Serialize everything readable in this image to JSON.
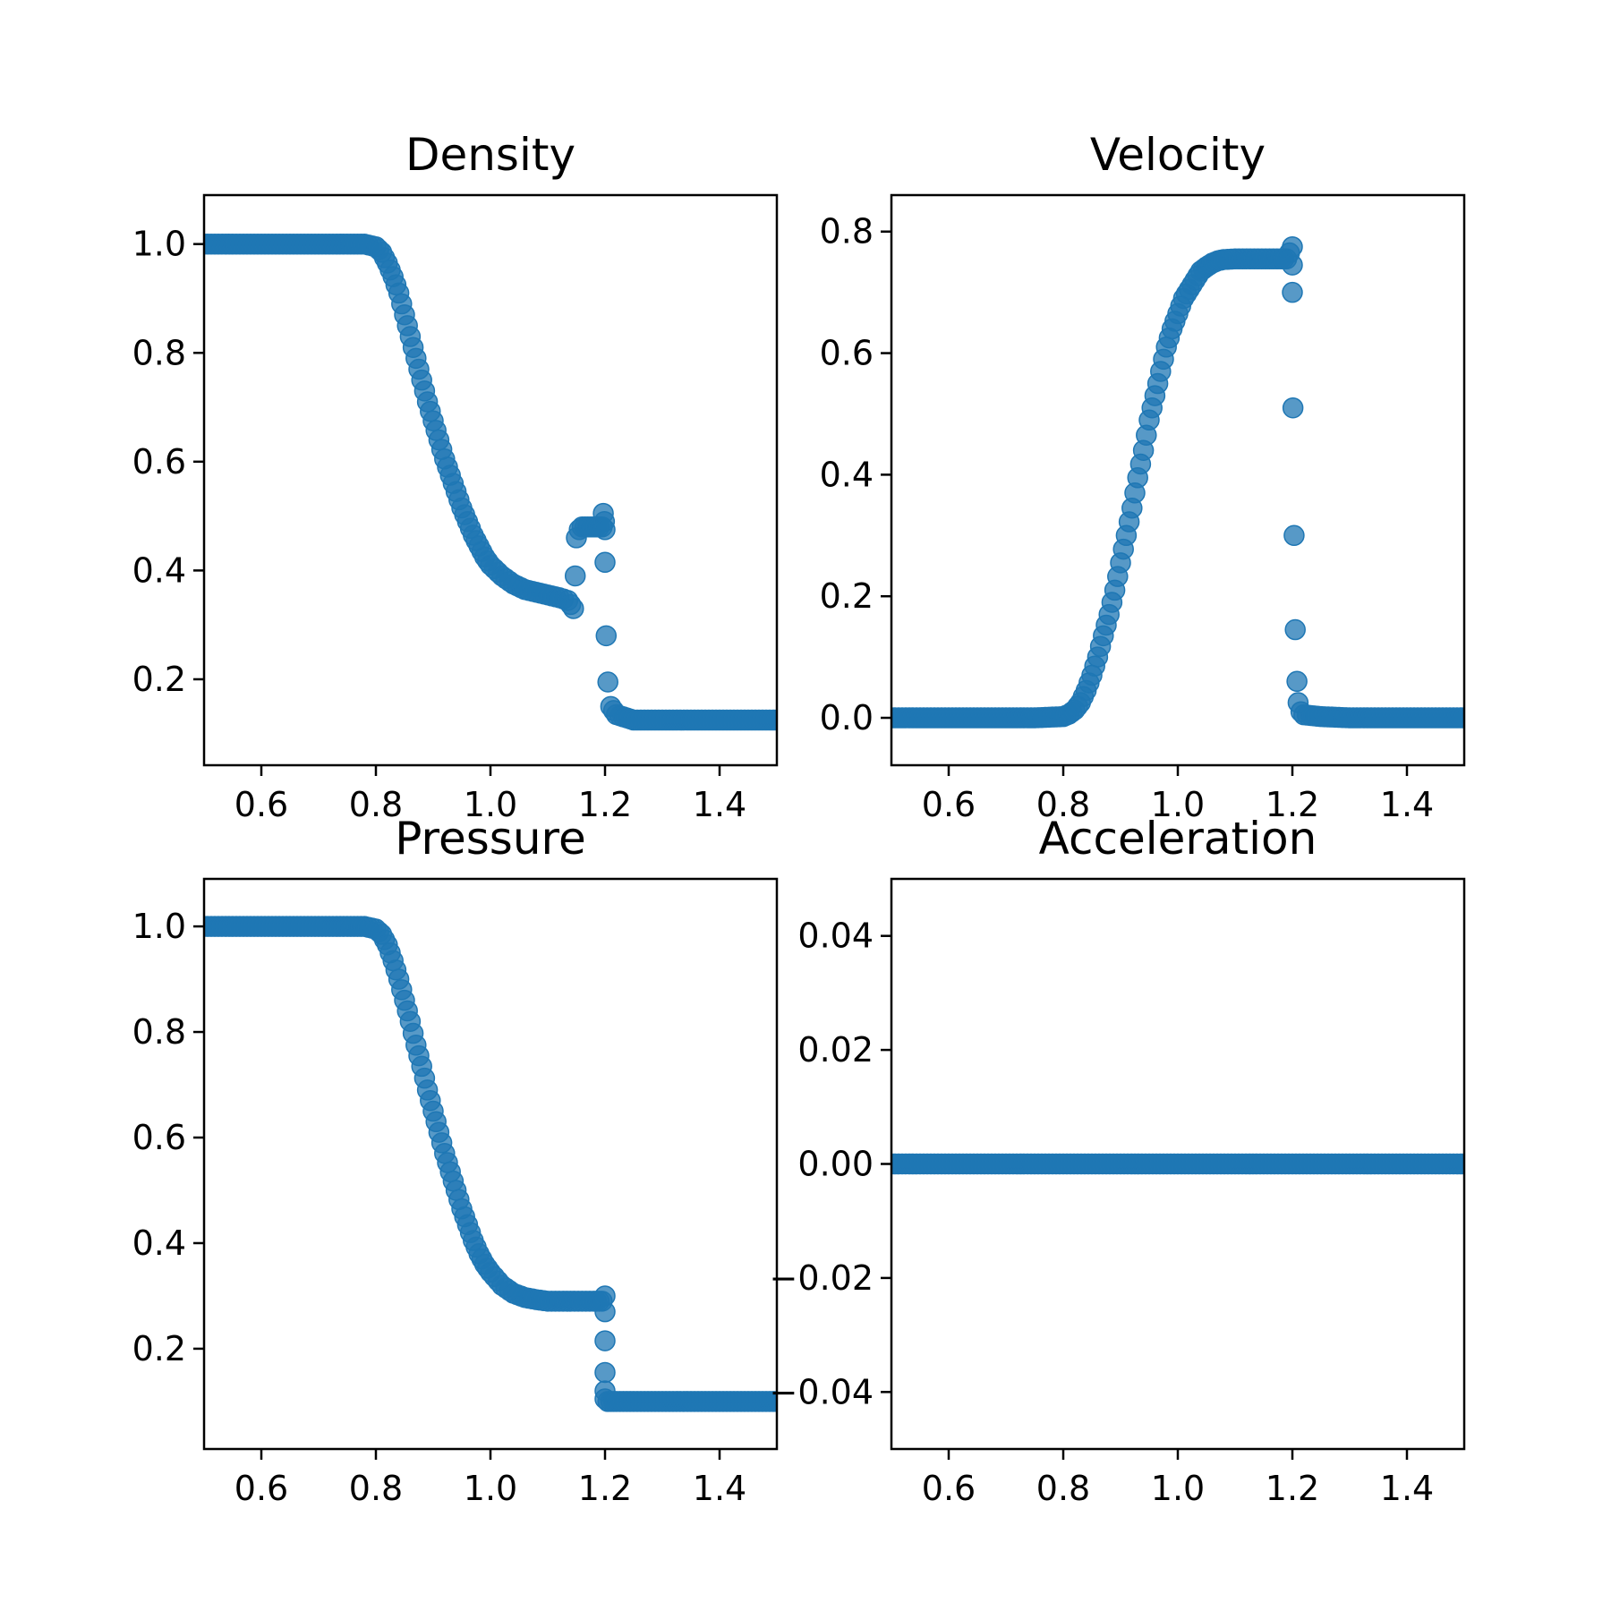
{
  "figure": {
    "background": "#ffffff"
  },
  "chart_data": [
    {
      "type": "scatter",
      "title": "Density",
      "xlabel": "",
      "ylabel": "",
      "xlim": [
        0.5,
        1.5
      ],
      "ylim": [
        0.042,
        1.09
      ],
      "xticks": [
        "0.6",
        "0.8",
        "1.0",
        "1.2",
        "1.4"
      ],
      "yticks": [
        "0.2",
        "0.4",
        "0.6",
        "0.8",
        "1.0"
      ],
      "grid": false,
      "marker_color": "#1f77b4",
      "series": [
        {
          "x": [
            0.5,
            0.55,
            0.6,
            0.65,
            0.7,
            0.75,
            0.78,
            0.8,
            0.81,
            0.82,
            0.83,
            0.84,
            0.85,
            0.86,
            0.87,
            0.88,
            0.89,
            0.9,
            0.91,
            0.92,
            0.93,
            0.94,
            0.95,
            0.96,
            0.97,
            0.98,
            0.99,
            1.0,
            1.02,
            1.04,
            1.06,
            1.08,
            1.1,
            1.12,
            1.135,
            1.145,
            1.148,
            1.15,
            1.155,
            1.16,
            1.17,
            1.18,
            1.19,
            1.195,
            1.197,
            1.199,
            1.2,
            1.2,
            1.202,
            1.205,
            1.21,
            1.22,
            1.25,
            1.3,
            1.35,
            1.4,
            1.45,
            1.5
          ],
          "y": [
            1.0,
            1.0,
            1.0,
            1.0,
            1.0,
            1.0,
            1.0,
            0.995,
            0.985,
            0.965,
            0.94,
            0.91,
            0.87,
            0.83,
            0.79,
            0.75,
            0.71,
            0.675,
            0.64,
            0.605,
            0.575,
            0.545,
            0.515,
            0.49,
            0.465,
            0.445,
            0.425,
            0.41,
            0.39,
            0.375,
            0.365,
            0.36,
            0.355,
            0.35,
            0.345,
            0.33,
            0.39,
            0.46,
            0.475,
            0.48,
            0.48,
            0.48,
            0.48,
            0.48,
            0.505,
            0.49,
            0.475,
            0.415,
            0.28,
            0.195,
            0.15,
            0.135,
            0.125,
            0.125,
            0.125,
            0.125,
            0.125,
            0.125
          ]
        }
      ]
    },
    {
      "type": "scatter",
      "title": "Velocity",
      "xlabel": "",
      "ylabel": "",
      "xlim": [
        0.5,
        1.5
      ],
      "ylim": [
        -0.078,
        0.86
      ],
      "xticks": [
        "0.6",
        "0.8",
        "1.0",
        "1.2",
        "1.4"
      ],
      "yticks": [
        "0.0",
        "0.2",
        "0.4",
        "0.6",
        "0.8"
      ],
      "grid": false,
      "marker_color": "#1f77b4",
      "series": [
        {
          "x": [
            0.5,
            0.55,
            0.6,
            0.65,
            0.7,
            0.75,
            0.8,
            0.81,
            0.82,
            0.83,
            0.84,
            0.85,
            0.86,
            0.87,
            0.88,
            0.89,
            0.9,
            0.91,
            0.92,
            0.93,
            0.94,
            0.95,
            0.96,
            0.97,
            0.98,
            0.99,
            1.0,
            1.01,
            1.02,
            1.03,
            1.04,
            1.05,
            1.06,
            1.07,
            1.08,
            1.1,
            1.12,
            1.14,
            1.16,
            1.18,
            1.19,
            1.2,
            1.2,
            1.2,
            1.201,
            1.203,
            1.205,
            1.208,
            1.21,
            1.215,
            1.22,
            1.25,
            1.3,
            1.35,
            1.4,
            1.45,
            1.5
          ],
          "y": [
            0.0,
            0.0,
            0.0,
            0.0,
            0.0,
            0.0,
            0.002,
            0.006,
            0.013,
            0.025,
            0.045,
            0.07,
            0.1,
            0.135,
            0.17,
            0.21,
            0.255,
            0.3,
            0.345,
            0.395,
            0.44,
            0.49,
            0.53,
            0.57,
            0.61,
            0.64,
            0.665,
            0.69,
            0.705,
            0.72,
            0.735,
            0.742,
            0.748,
            0.752,
            0.754,
            0.755,
            0.755,
            0.755,
            0.755,
            0.755,
            0.755,
            0.775,
            0.745,
            0.7,
            0.51,
            0.3,
            0.145,
            0.06,
            0.025,
            0.01,
            0.005,
            0.002,
            0.0,
            0.0,
            0.0,
            0.0,
            0.0
          ]
        }
      ]
    },
    {
      "type": "scatter",
      "title": "Pressure",
      "xlabel": "",
      "ylabel": "",
      "xlim": [
        0.5,
        1.5
      ],
      "ylim": [
        0.01,
        1.09
      ],
      "xticks": [
        "0.6",
        "0.8",
        "1.0",
        "1.2",
        "1.4"
      ],
      "yticks": [
        "0.2",
        "0.4",
        "0.6",
        "0.8",
        "1.0"
      ],
      "grid": false,
      "marker_color": "#1f77b4",
      "series": [
        {
          "x": [
            0.5,
            0.55,
            0.6,
            0.65,
            0.7,
            0.75,
            0.78,
            0.8,
            0.81,
            0.82,
            0.83,
            0.84,
            0.85,
            0.86,
            0.87,
            0.88,
            0.89,
            0.9,
            0.91,
            0.92,
            0.93,
            0.94,
            0.95,
            0.96,
            0.97,
            0.98,
            0.99,
            1.0,
            1.02,
            1.04,
            1.06,
            1.08,
            1.1,
            1.12,
            1.14,
            1.16,
            1.18,
            1.195,
            1.2,
            1.2,
            1.2,
            1.2,
            1.2,
            1.2,
            1.205,
            1.21,
            1.22,
            1.25,
            1.3,
            1.35,
            1.4,
            1.45,
            1.5
          ],
          "y": [
            1.0,
            1.0,
            1.0,
            1.0,
            1.0,
            1.0,
            1.0,
            0.995,
            0.985,
            0.965,
            0.935,
            0.9,
            0.86,
            0.82,
            0.775,
            0.735,
            0.69,
            0.65,
            0.61,
            0.57,
            0.535,
            0.5,
            0.465,
            0.435,
            0.405,
            0.38,
            0.36,
            0.345,
            0.32,
            0.305,
            0.297,
            0.293,
            0.29,
            0.29,
            0.29,
            0.29,
            0.29,
            0.29,
            0.3,
            0.27,
            0.215,
            0.155,
            0.12,
            0.105,
            0.1,
            0.1,
            0.1,
            0.1,
            0.1,
            0.1,
            0.1,
            0.1,
            0.1
          ]
        }
      ]
    },
    {
      "type": "scatter",
      "title": "Acceleration",
      "xlabel": "",
      "ylabel": "",
      "xlim": [
        0.5,
        1.5
      ],
      "ylim": [
        -0.05,
        0.05
      ],
      "xticks": [
        "0.6",
        "0.8",
        "1.0",
        "1.2",
        "1.4"
      ],
      "yticks": [
        "−0.04",
        "−0.02",
        "0.00",
        "0.02",
        "0.04"
      ],
      "grid": false,
      "marker_color": "#1f77b4",
      "series": [
        {
          "x": [
            0.5,
            0.55,
            0.6,
            0.65,
            0.7,
            0.75,
            0.8,
            0.85,
            0.9,
            0.95,
            1.0,
            1.05,
            1.1,
            1.15,
            1.2,
            1.25,
            1.3,
            1.35,
            1.4,
            1.45,
            1.5
          ],
          "y": [
            0.0,
            0.0,
            0.0,
            0.0,
            0.0,
            0.0,
            0.0,
            0.0,
            0.0,
            0.0,
            0.0,
            0.0,
            0.0,
            0.0,
            0.0,
            0.0,
            0.0,
            0.0,
            0.0,
            0.0,
            0.0
          ]
        }
      ]
    }
  ]
}
